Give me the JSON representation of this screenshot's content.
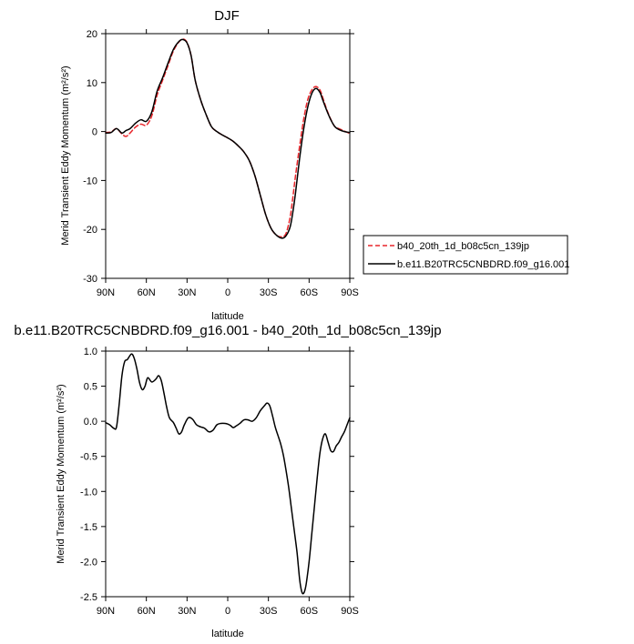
{
  "chart_data": [
    {
      "type": "line",
      "title": "DJF",
      "xlabel": "latitude",
      "ylabel": "Merid Transient Eddy Momentum (m²/s²)",
      "xlim": [
        90,
        -90
      ],
      "ylim": [
        -30,
        20
      ],
      "xticks": [
        {
          "value": 90,
          "label": "90N"
        },
        {
          "value": 60,
          "label": "60N"
        },
        {
          "value": 30,
          "label": "30N"
        },
        {
          "value": 0,
          "label": "0"
        },
        {
          "value": -30,
          "label": "30S"
        },
        {
          "value": -60,
          "label": "60S"
        },
        {
          "value": -90,
          "label": "90S"
        }
      ],
      "yticks": [
        {
          "value": 20,
          "label": "20"
        },
        {
          "value": 10,
          "label": "10"
        },
        {
          "value": 0,
          "label": "0"
        },
        {
          "value": -10,
          "label": "-10"
        },
        {
          "value": -20,
          "label": "-20"
        },
        {
          "value": -30,
          "label": "-30"
        }
      ],
      "grid": false,
      "legend_placement": "right",
      "series": [
        {
          "name": "b40_20th_1d_b08c5cn_139jp",
          "color": "#e8262b",
          "dash": "dashed",
          "x": [
            90,
            86,
            82,
            78,
            75,
            72,
            68,
            64,
            60,
            56,
            52,
            48,
            44,
            40,
            36,
            33,
            30,
            27,
            24,
            20,
            16,
            12,
            8,
            4,
            0,
            -4,
            -8,
            -12,
            -16,
            -20,
            -24,
            -28,
            -32,
            -36,
            -40,
            -43,
            -46,
            -48,
            -50,
            -53,
            -56,
            -59,
            -62,
            -65,
            -68,
            -70,
            -73,
            -76,
            -79,
            -82,
            -86,
            -90
          ],
          "y": [
            -0.2,
            -0.1,
            0.6,
            -0.5,
            -1.0,
            -0.3,
            0.9,
            1.5,
            1.3,
            3.2,
            7.5,
            10.5,
            13.5,
            16.5,
            18.3,
            18.9,
            18.2,
            15.5,
            10.5,
            6.5,
            3.5,
            1.0,
            0.0,
            -0.7,
            -1.3,
            -2.0,
            -3.0,
            -4.2,
            -6.0,
            -9.0,
            -13.0,
            -17.0,
            -19.8,
            -21.2,
            -21.5,
            -20.8,
            -17.5,
            -13.5,
            -9.0,
            -3.0,
            2.5,
            6.5,
            8.5,
            9.2,
            8.5,
            7.0,
            4.5,
            2.5,
            1.0,
            0.6,
            0.1,
            -0.4
          ]
        },
        {
          "name": "b.e11.B20TRC5CNBDRD.f09_g16.001",
          "color": "#000000",
          "dash": "solid",
          "x": [
            90,
            86,
            82,
            78,
            75,
            72,
            68,
            64,
            60,
            56,
            52,
            48,
            44,
            40,
            36,
            33,
            30,
            27,
            24,
            20,
            16,
            12,
            8,
            4,
            0,
            -4,
            -8,
            -12,
            -16,
            -20,
            -24,
            -28,
            -32,
            -36,
            -40,
            -43,
            -46,
            -48,
            -50,
            -53,
            -56,
            -59,
            -62,
            -65,
            -68,
            -70,
            -73,
            -76,
            -79,
            -82,
            -86,
            -90
          ],
          "y": [
            -0.3,
            -0.2,
            0.6,
            -0.3,
            0.2,
            0.6,
            1.7,
            2.4,
            2.1,
            4.0,
            8.3,
            11.0,
            14.0,
            16.8,
            18.4,
            18.8,
            18.1,
            15.5,
            10.5,
            6.5,
            3.5,
            1.0,
            0.0,
            -0.7,
            -1.3,
            -2.0,
            -3.0,
            -4.2,
            -6.0,
            -9.0,
            -13.0,
            -17.0,
            -19.8,
            -21.2,
            -21.8,
            -21.3,
            -19.5,
            -16.5,
            -12.5,
            -5.5,
            0.5,
            5.0,
            7.8,
            8.8,
            8.0,
            6.5,
            4.3,
            2.4,
            1.0,
            0.4,
            0.0,
            -0.2
          ]
        }
      ]
    },
    {
      "type": "line",
      "title": "b.e11.B20TRC5CNBDRD.f09_g16.001 - b40_20th_1d_b08c5cn_139jp",
      "xlabel": "latitude",
      "ylabel": "Merid Transient Eddy Momentum (m²/s²)",
      "xlim": [
        90,
        -90
      ],
      "ylim": [
        -2.5,
        1.0
      ],
      "xticks": [
        {
          "value": 90,
          "label": "90N"
        },
        {
          "value": 60,
          "label": "60N"
        },
        {
          "value": 30,
          "label": "30N"
        },
        {
          "value": 0,
          "label": "0"
        },
        {
          "value": -30,
          "label": "30S"
        },
        {
          "value": -60,
          "label": "60S"
        },
        {
          "value": -90,
          "label": "90S"
        }
      ],
      "yticks": [
        {
          "value": 1.0,
          "label": "1.0"
        },
        {
          "value": 0.5,
          "label": "0.5"
        },
        {
          "value": 0.0,
          "label": "0.0"
        },
        {
          "value": -0.5,
          "label": "-0.5"
        },
        {
          "value": -1.0,
          "label": "-1.0"
        },
        {
          "value": -1.5,
          "label": "-1.5"
        },
        {
          "value": -2.0,
          "label": "-2.0"
        },
        {
          "value": -2.5,
          "label": "-2.5"
        }
      ],
      "grid": false,
      "series": [
        {
          "color": "#000000",
          "dash": "solid",
          "x": [
            90,
            87,
            84,
            82,
            80,
            78,
            76,
            74,
            71,
            69,
            67,
            65,
            63,
            61,
            59,
            56,
            53,
            51,
            49,
            47,
            45,
            43,
            40,
            38,
            36,
            34,
            32,
            29,
            26,
            23,
            20,
            17,
            14,
            11,
            8,
            5,
            2,
            0,
            -2,
            -4,
            -6,
            -9,
            -12,
            -15,
            -18,
            -21,
            -24,
            -27,
            -29,
            -31,
            -33,
            -35,
            -37,
            -39,
            -41,
            -43,
            -45,
            -47,
            -49,
            -51,
            -52,
            -53,
            -54,
            -55,
            -56,
            -57,
            -58,
            -60,
            -62,
            -64,
            -66,
            -68,
            -70,
            -72,
            -74,
            -76,
            -78,
            -80,
            -82,
            -84,
            -86,
            -88,
            -90
          ],
          "y": [
            -0.02,
            -0.05,
            -0.1,
            -0.08,
            0.25,
            0.65,
            0.85,
            0.88,
            0.96,
            0.9,
            0.75,
            0.55,
            0.45,
            0.5,
            0.62,
            0.56,
            0.6,
            0.65,
            0.58,
            0.4,
            0.2,
            0.05,
            -0.02,
            -0.1,
            -0.18,
            -0.15,
            -0.05,
            0.05,
            0.03,
            -0.05,
            -0.08,
            -0.1,
            -0.15,
            -0.13,
            -0.05,
            -0.03,
            -0.03,
            -0.04,
            -0.06,
            -0.09,
            -0.07,
            -0.03,
            0.02,
            0.02,
            0.0,
            0.05,
            0.15,
            0.22,
            0.26,
            0.22,
            0.08,
            -0.08,
            -0.2,
            -0.32,
            -0.48,
            -0.7,
            -0.95,
            -1.25,
            -1.55,
            -1.85,
            -2.05,
            -2.25,
            -2.38,
            -2.45,
            -2.45,
            -2.4,
            -2.3,
            -2.0,
            -1.6,
            -1.2,
            -0.8,
            -0.45,
            -0.25,
            -0.18,
            -0.3,
            -0.42,
            -0.43,
            -0.35,
            -0.3,
            -0.22,
            -0.15,
            -0.05,
            0.05
          ]
        }
      ]
    }
  ]
}
